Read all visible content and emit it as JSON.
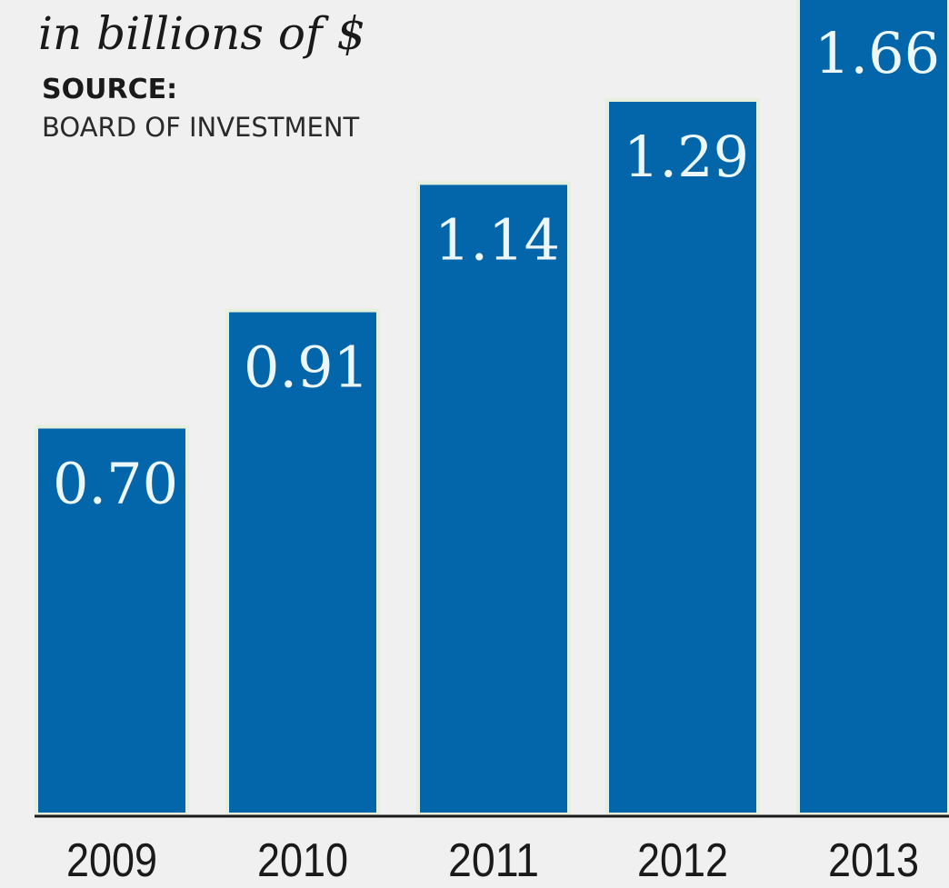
{
  "chart_data": {
    "type": "bar",
    "subtitle": "in billions of $",
    "source_heading": "SOURCE:",
    "source_text": "BOARD OF INVESTMENT",
    "categories": [
      "2009",
      "2010",
      "2011",
      "2012",
      "2013"
    ],
    "values": [
      0.7,
      0.91,
      1.14,
      1.29,
      1.66
    ],
    "value_labels": [
      "0.70",
      "0.91",
      "1.14",
      "1.29",
      "1.66"
    ],
    "ylim": [
      0,
      1.29
    ],
    "grid": false,
    "bar_color": "#0366ab",
    "label_color": "#eef7f7",
    "background_color": "#f0f0f0"
  }
}
